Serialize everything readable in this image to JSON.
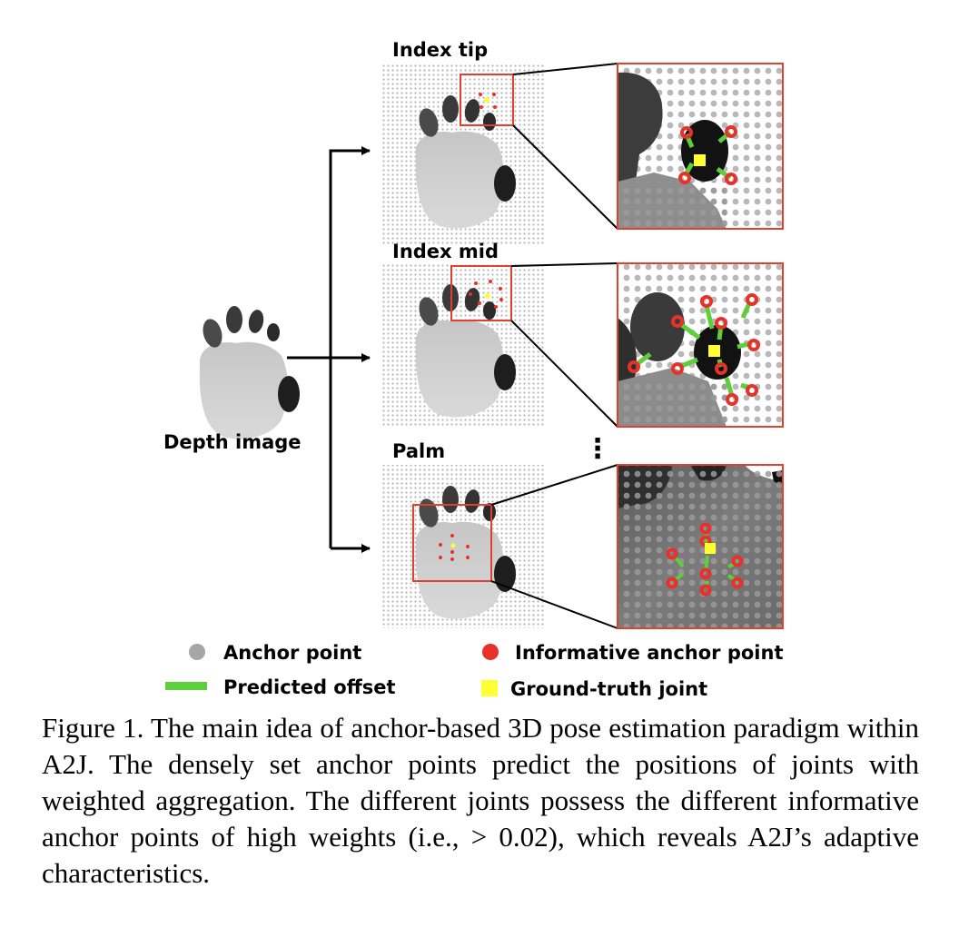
{
  "figure": {
    "input_label": "Depth image",
    "panels": [
      {
        "title": "Index tip"
      },
      {
        "title": "Index mid"
      },
      {
        "title": "Palm"
      }
    ],
    "ellipsis": "⋮",
    "legend": {
      "anchor_point": "Anchor point",
      "informative_anchor_point": "Informative anchor point",
      "predicted_offset": "Predicted offset",
      "ground_truth_joint": "Ground-truth joint"
    },
    "colors": {
      "anchor": "#a6a6a6",
      "informative_anchor": "#e8312a",
      "offset": "#5ccf3a",
      "joint": "#ffff33",
      "crop_box": "#e0402e"
    }
  },
  "caption": "Figure 1. The main idea of anchor-based 3D pose estimation paradigm within A2J. The densely set anchor points predict the positions of joints with weighted aggregation. The different joints possess the different informative anchor points of high weights (i.e., > 0.02), which reveals A2J’s adaptive characteristics."
}
